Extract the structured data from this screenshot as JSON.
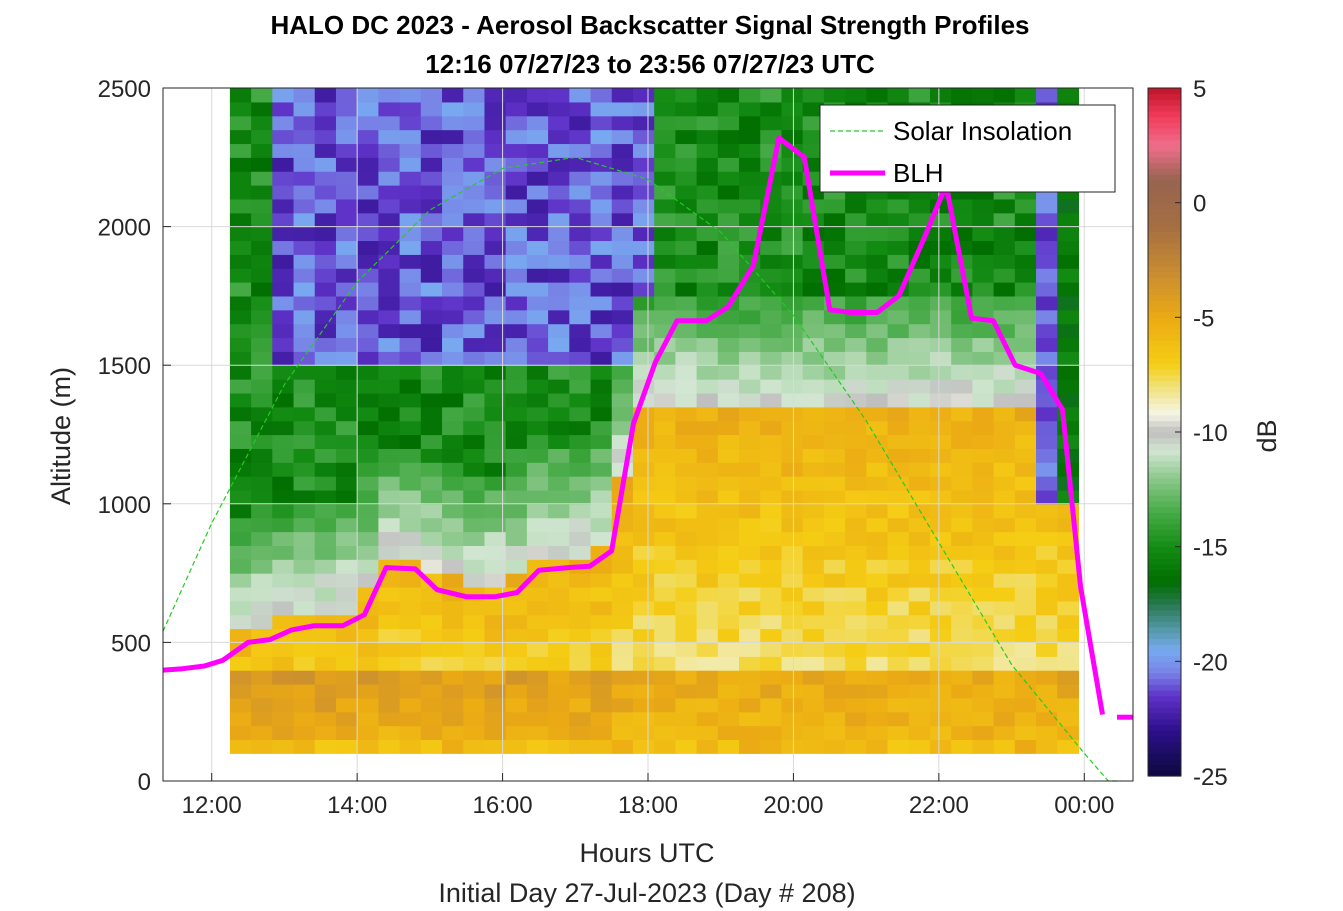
{
  "chart_data": {
    "type": "heatmap",
    "title": "HALO DC 2023 - Aerosol Backscatter Signal Strength Profiles",
    "subtitle": "12:16 07/27/23 to 23:56 07/27/23  UTC",
    "xlabel": "Hours UTC",
    "xlabel2": "Initial Day 27-Jul-2023 (Day # 208)",
    "ylabel": "Altitude (m)",
    "colorbar_label": "dB",
    "xlim": [
      11.33,
      24.67
    ],
    "ylim": [
      0,
      2500
    ],
    "clim": [
      -25,
      5
    ],
    "x_ticks": [
      12,
      14,
      16,
      18,
      20,
      22,
      24
    ],
    "x_tick_labels": [
      "12:00",
      "14:00",
      "16:00",
      "18:00",
      "20:00",
      "22:00",
      "00:00"
    ],
    "y_ticks": [
      0,
      500,
      1000,
      1500,
      2000,
      2500
    ],
    "y_tick_labels": [
      "0",
      "500",
      "1000",
      "1500",
      "2000",
      "2500"
    ],
    "cbar_ticks": [
      5,
      0,
      -5,
      -10,
      -15,
      -20,
      -25
    ],
    "cbar_tick_labels": [
      "5",
      "0",
      "-5",
      "-10",
      "-15",
      "-20",
      "-25"
    ],
    "grid": true,
    "legend_position": "top-right",
    "series": [
      {
        "name": "Solar Insolation",
        "style": "dashed",
        "color": "#22cc22",
        "peak_altitude_m": 2250,
        "x": [
          11.33,
          12.0,
          13.0,
          14.0,
          15.0,
          16.0,
          17.0,
          18.0,
          19.0,
          20.0,
          21.0,
          22.0,
          23.0,
          24.0,
          24.33,
          24.5
        ],
        "y": [
          540,
          930,
          1430,
          1800,
          2060,
          2210,
          2250,
          2170,
          1980,
          1680,
          1300,
          860,
          420,
          100,
          0,
          0
        ]
      },
      {
        "name": "BLH",
        "style": "solid",
        "color": "#ff00ff",
        "x": [
          11.33,
          11.6,
          11.9,
          12.15,
          12.5,
          12.8,
          13.1,
          13.4,
          13.8,
          14.1,
          14.4,
          14.8,
          15.1,
          15.5,
          15.9,
          16.2,
          16.5,
          16.9,
          17.2,
          17.5,
          17.8,
          18.1,
          18.4,
          18.8,
          19.1,
          19.45,
          19.8,
          20.15,
          20.5,
          20.8,
          21.15,
          21.45,
          21.8,
          22.1,
          22.45,
          22.75,
          23.05,
          23.4,
          23.7,
          23.95,
          24.25
        ],
        "y": [
          400,
          405,
          415,
          435,
          500,
          510,
          545,
          560,
          560,
          600,
          770,
          765,
          690,
          665,
          665,
          680,
          760,
          770,
          775,
          830,
          1290,
          1510,
          1660,
          1660,
          1710,
          1860,
          2320,
          2250,
          1700,
          1690,
          1690,
          1750,
          1960,
          2150,
          1670,
          1660,
          1500,
          1470,
          1340,
          700,
          240
        ]
      },
      {
        "name": "BLH",
        "style": "solid",
        "color": "#ff00ff",
        "x": [
          24.45,
          24.67
        ],
        "y": [
          230,
          230
        ]
      }
    ],
    "heatmap": {
      "description_units": "dB",
      "x_start": 12.25,
      "x_end": 23.92,
      "columns": 40,
      "altitude_bottom_m": 100,
      "altitude_top_m": 2500,
      "boundary_layer_dB": -6,
      "free_troposphere_dB": -15,
      "upper_clear_dB": -21
    }
  },
  "legend": {
    "items": [
      "Solar Insolation",
      "BLH"
    ]
  }
}
